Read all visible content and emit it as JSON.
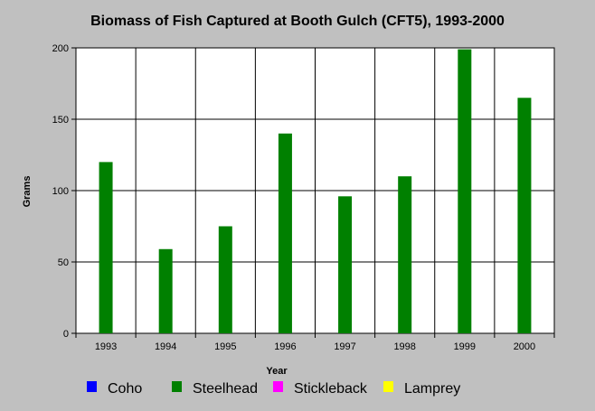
{
  "chart_data": {
    "type": "bar",
    "title": "Biomass of Fish Captured at Booth Gulch (CFT5), 1993-2000",
    "xlabel": "Year",
    "ylabel": "Grams",
    "categories": [
      "1993",
      "1994",
      "1995",
      "1996",
      "1997",
      "1998",
      "1999",
      "2000"
    ],
    "ylim": [
      0,
      200
    ],
    "yticks": [
      0,
      50,
      100,
      150,
      200
    ],
    "grid": true,
    "legend_position": "bottom",
    "series": [
      {
        "name": "Coho",
        "color": "#0000ff",
        "values": [
          0,
          0,
          0,
          0,
          0,
          0,
          0,
          0
        ]
      },
      {
        "name": "Steelhead",
        "color": "#008000",
        "values": [
          120,
          59,
          75,
          140,
          96,
          110,
          199,
          165
        ]
      },
      {
        "name": "Stickleback",
        "color": "#ff00ff",
        "values": [
          0,
          0,
          0,
          0,
          0,
          0,
          0,
          0
        ]
      },
      {
        "name": "Lamprey",
        "color": "#ffff00",
        "values": [
          0,
          0,
          0,
          0,
          0,
          0,
          0,
          0
        ]
      }
    ],
    "plot_background": "#ffffff",
    "page_background": "#c0c0c0"
  }
}
